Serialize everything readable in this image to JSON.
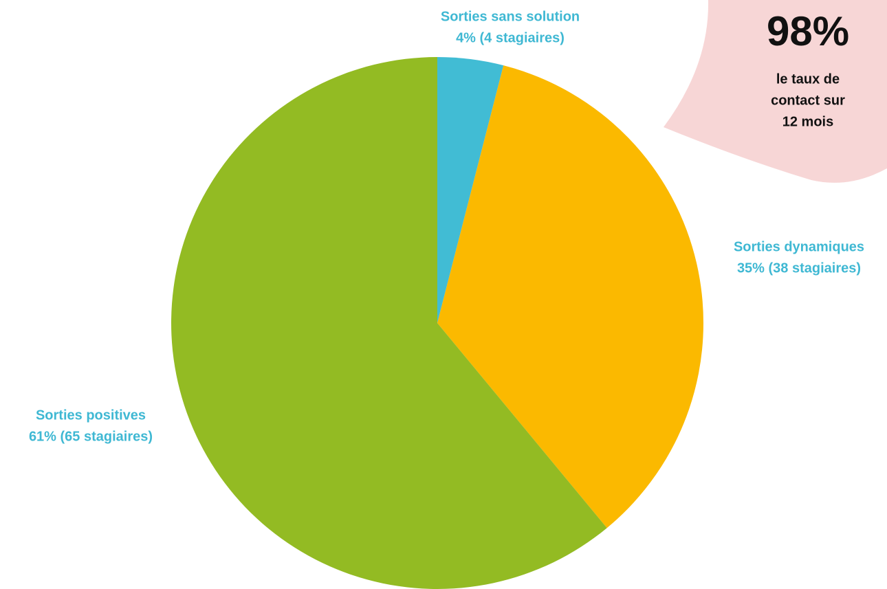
{
  "chart_data": {
    "type": "pie",
    "categories": [
      "Sorties sans solution",
      "Sorties dynamiques",
      "Sorties positives"
    ],
    "values": [
      4,
      35,
      61
    ],
    "value_labels": [
      "4% (4 stagiaires)",
      "35% (38 stagiaires)",
      "61% (65 stagiaires)"
    ],
    "colors": [
      "#41bcd4",
      "#fbb900",
      "#93bb23"
    ],
    "label_color": "#3fb8d3",
    "annotation": {
      "value": 98,
      "label": "98%",
      "text": [
        "le taux de",
        "contact sur",
        "12 mois"
      ],
      "color": "#f7d6d6"
    }
  }
}
